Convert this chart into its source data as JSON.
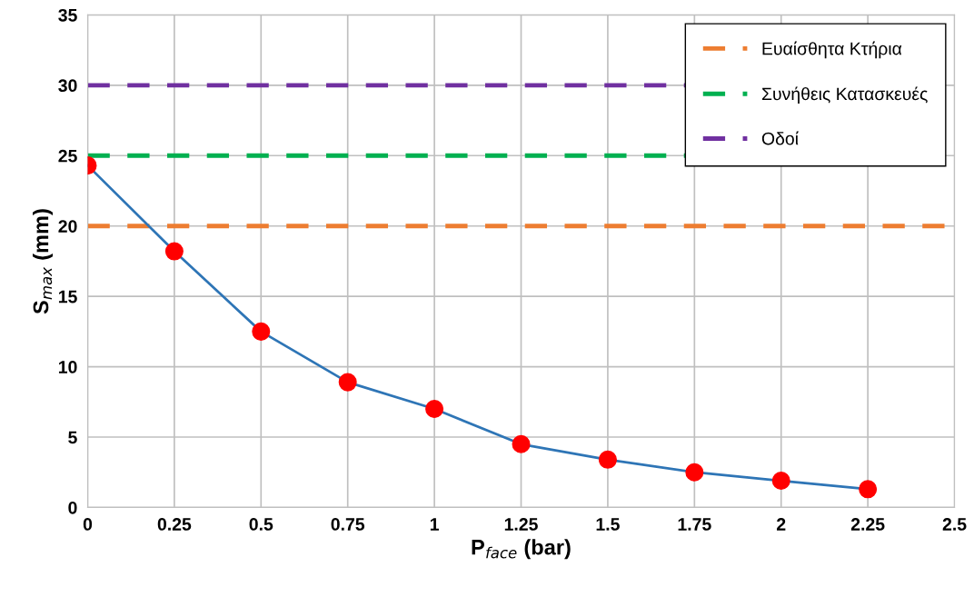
{
  "chart_data": {
    "type": "line",
    "xlabel": "P$_{face}$ (bar)",
    "ylabel": "S$_{max}$ (mm)",
    "x": [
      0,
      0.25,
      0.5,
      0.75,
      1,
      1.25,
      1.5,
      1.75,
      2,
      2.25
    ],
    "series": [
      {
        "color": "#2e75b6",
        "colors": [
          "#ff0000",
          "#ff0000",
          "#ff0000",
          "#ff0000",
          "#ff0000",
          "#ff0000",
          "#ff0000",
          "#ff0000",
          "#ff0000",
          "#ff0000"
        ],
        "values": [
          24.3,
          18.2,
          12.5,
          8.9,
          7.0,
          4.5,
          3.4,
          2.5,
          1.9,
          1.3
        ]
      }
    ],
    "ref_lines": [
      {
        "axis": "y",
        "value": 20,
        "label": "Ευαίσθητα Κτήρια",
        "color": "#ed7d31",
        "line_style": "dashed"
      },
      {
        "axis": "y",
        "value": 25,
        "label": "Συνήθεις Κατασκευές",
        "color": "#00b050",
        "line_style": "dashed"
      },
      {
        "axis": "y",
        "value": 30,
        "label": "Οδοί",
        "color": "#7030a0",
        "line_style": "dashed"
      }
    ],
    "xlim": [
      0,
      2.5
    ],
    "xticks": [
      0,
      0.25,
      0.5,
      0.75,
      1,
      1.25,
      1.5,
      1.75,
      2,
      2.25,
      2.5
    ],
    "ylim": [
      0,
      35
    ],
    "yticks": [
      0,
      5,
      10,
      15,
      20,
      25,
      30,
      35
    ],
    "grid": true,
    "legend": "top right",
    "marker": "circle",
    "line_style": "solid"
  }
}
